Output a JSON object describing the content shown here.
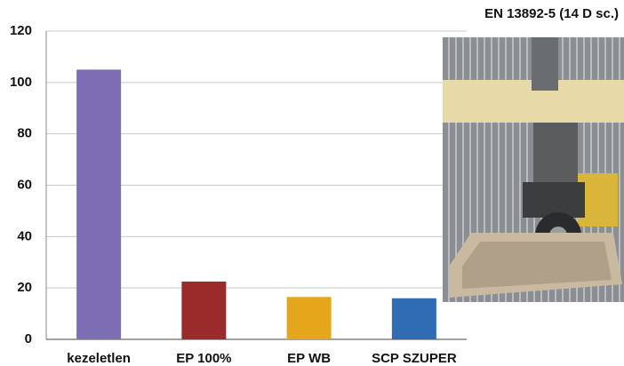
{
  "chart_data": {
    "type": "bar",
    "title": "EN 13892-5 (14 D sc.)",
    "categories": [
      "kezeletlen",
      "EP 100%",
      "EP WB",
      "SCP SZUPER"
    ],
    "values": [
      105,
      22.5,
      16.5,
      16
    ],
    "colors": [
      "#7d6db3",
      "#9b2b2b",
      "#e6a61c",
      "#2f6cb3"
    ],
    "ylim": [
      0,
      120
    ],
    "yticks": [
      0,
      20,
      40,
      60,
      80,
      100,
      120
    ],
    "grid": true
  }
}
